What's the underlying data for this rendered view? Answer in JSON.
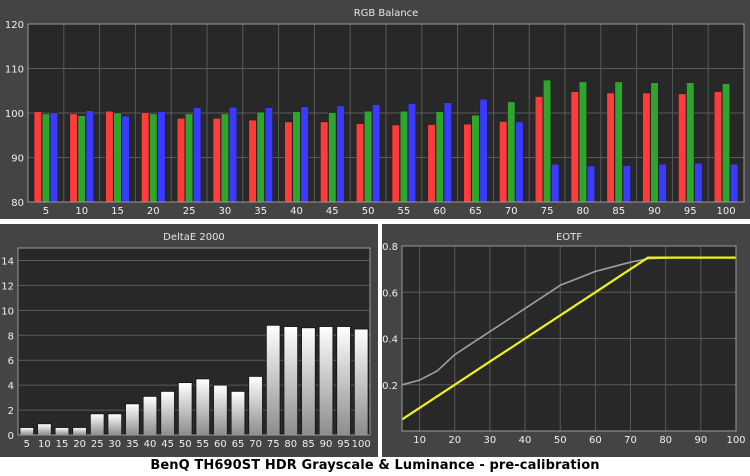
{
  "caption": "BenQ TH690ST HDR Grayscale & Luminance - pre-calibration",
  "colors": {
    "red": "#ff3b3b",
    "green": "#2ea62e",
    "blue": "#3b3bff",
    "eotf_target": "#a0a0a0",
    "eotf_measured": "#f0f020",
    "panel_bg": "#444444",
    "plot_bg": "#282828"
  },
  "chart_data": [
    {
      "type": "bar",
      "title": "RGB Balance",
      "xlabel": "",
      "ylabel": "",
      "ylim": [
        80,
        120
      ],
      "yticks": [
        80,
        90,
        100,
        110,
        120
      ],
      "grid": true,
      "categories": [
        "5",
        "10",
        "15",
        "20",
        "25",
        "30",
        "35",
        "40",
        "45",
        "50",
        "55",
        "60",
        "65",
        "70",
        "75",
        "80",
        "85",
        "90",
        "95",
        "100"
      ],
      "series": [
        {
          "color": "red",
          "values": [
            100.3,
            99.8,
            100.4,
            100.1,
            98.8,
            98.8,
            98.4,
            98.0,
            98.0,
            97.6,
            97.3,
            97.4,
            97.5,
            98.1,
            103.7,
            104.8,
            104.5,
            104.5,
            104.3,
            104.8
          ]
        },
        {
          "color": "green",
          "values": [
            99.8,
            99.4,
            100.0,
            99.8,
            99.8,
            99.8,
            100.2,
            100.3,
            100.1,
            100.4,
            100.4,
            100.3,
            99.5,
            102.5,
            107.4,
            107.0,
            107.0,
            106.8,
            106.8,
            106.6
          ]
        },
        {
          "color": "blue",
          "values": [
            100.1,
            100.5,
            99.3,
            100.3,
            101.2,
            101.3,
            101.2,
            101.4,
            101.6,
            101.9,
            102.1,
            102.3,
            103.1,
            98.0,
            88.5,
            88.1,
            88.2,
            88.5,
            88.7,
            88.5
          ]
        }
      ]
    },
    {
      "type": "bar",
      "title": "DeltaE 2000",
      "xlabel": "",
      "ylabel": "",
      "ylim": [
        0,
        15
      ],
      "yticks": [
        0,
        2,
        4,
        6,
        8,
        10,
        12,
        14
      ],
      "grid": true,
      "categories": [
        "5",
        "10",
        "15",
        "20",
        "25",
        "30",
        "35",
        "40",
        "45",
        "50",
        "55",
        "60",
        "65",
        "70",
        "75",
        "80",
        "85",
        "90",
        "95",
        "100"
      ],
      "values": [
        0.6,
        0.9,
        0.6,
        0.6,
        1.7,
        1.7,
        2.5,
        3.1,
        3.5,
        4.2,
        4.5,
        4.0,
        3.5,
        4.7,
        8.8,
        8.7,
        8.6,
        8.7,
        8.7,
        8.5
      ]
    },
    {
      "type": "line",
      "title": "EOTF",
      "xlabel": "",
      "ylabel": "",
      "xlim": [
        5,
        100
      ],
      "ylim": [
        0,
        0.8
      ],
      "xticks": [
        10,
        20,
        30,
        40,
        50,
        60,
        70,
        80,
        90,
        100
      ],
      "yticks": [
        0.2,
        0.4,
        0.6,
        0.8
      ],
      "grid": true,
      "series": [
        {
          "color": "eotf_target",
          "x": [
            5,
            10,
            15,
            20,
            25,
            30,
            35,
            40,
            45,
            50,
            55,
            60,
            65,
            70,
            75,
            80,
            85,
            90,
            95,
            100
          ],
          "y": [
            0.2,
            0.22,
            0.26,
            0.33,
            0.38,
            0.43,
            0.48,
            0.53,
            0.58,
            0.63,
            0.66,
            0.69,
            0.71,
            0.73,
            0.745,
            0.748,
            0.75,
            0.75,
            0.75,
            0.75
          ]
        },
        {
          "color": "eotf_measured",
          "x": [
            5,
            10,
            15,
            20,
            25,
            30,
            35,
            40,
            45,
            50,
            55,
            60,
            65,
            70,
            75,
            80,
            85,
            90,
            95,
            100
          ],
          "y": [
            0.05,
            0.1,
            0.15,
            0.2,
            0.25,
            0.3,
            0.35,
            0.4,
            0.45,
            0.5,
            0.55,
            0.6,
            0.65,
            0.7,
            0.75,
            0.75,
            0.75,
            0.75,
            0.75,
            0.75
          ]
        }
      ]
    }
  ]
}
